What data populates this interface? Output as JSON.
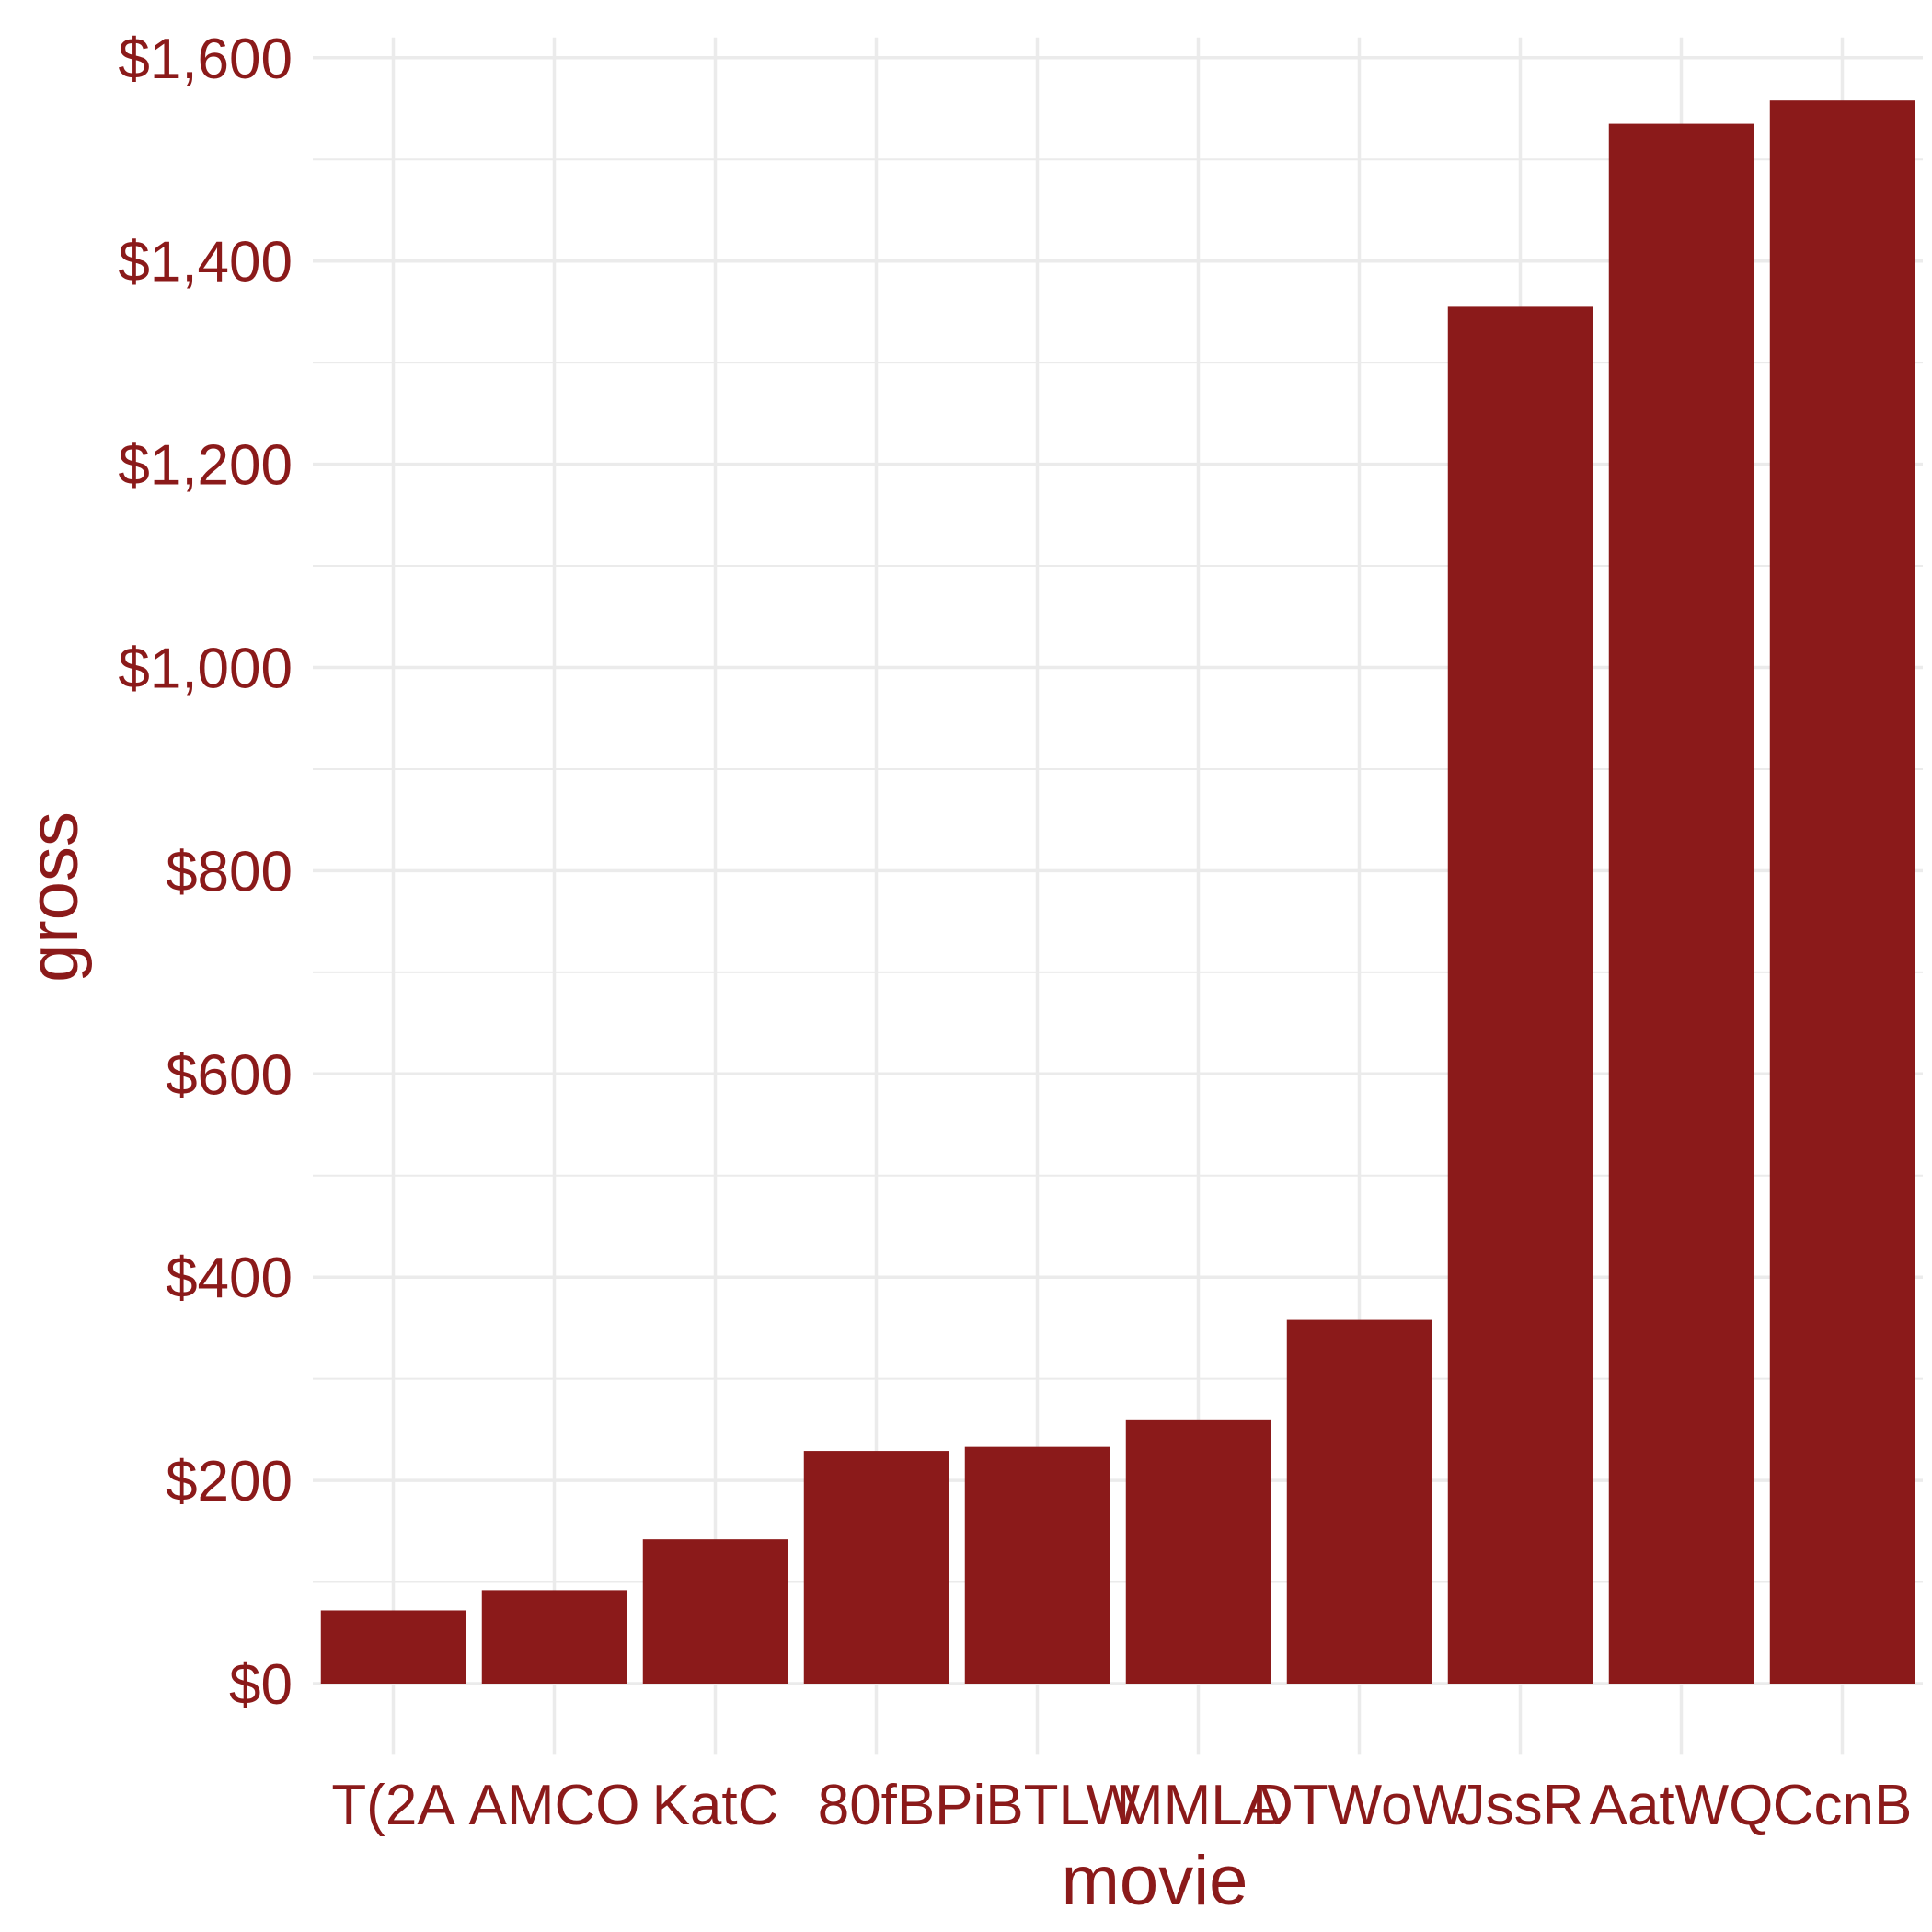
{
  "chart_data": {
    "type": "bar",
    "categories": [
      "T(2A",
      "AMCO",
      "KatC",
      "80fB",
      "PiBTLW",
      "MMLA",
      "DTWoW",
      "JssR",
      "AatWQ",
      "CcnB"
    ],
    "values": [
      72,
      92,
      142,
      229,
      233,
      260,
      358,
      1355,
      1535,
      1558
    ],
    "xlabel": "movie",
    "ylabel": "gross",
    "ylim": [
      -70,
      1620
    ],
    "yticks": [
      0,
      200,
      400,
      600,
      800,
      1000,
      1200,
      1400,
      1600
    ],
    "ytick_labels": [
      "$0",
      "$200",
      "$400",
      "$600",
      "$800",
      "$1,000",
      "$1,200",
      "$1,400",
      "$1,600"
    ],
    "grid": true,
    "legend": "none",
    "colors": {
      "bar": "#8b1a1a",
      "text": "#8b1a1a",
      "grid": "#ebebeb"
    }
  }
}
